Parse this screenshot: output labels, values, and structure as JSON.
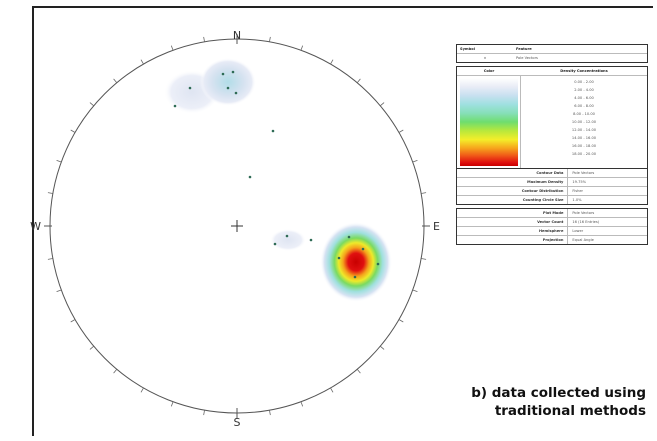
{
  "compass": {
    "north": "N",
    "south": "S",
    "east": "E",
    "west": "W"
  },
  "legend": {
    "symbol_header": {
      "col1": "Symbol",
      "col2": "Feature"
    },
    "symbol_row": {
      "marker": "×",
      "label": "Pole Vectors"
    },
    "density_header": {
      "col1": "Color",
      "col2": "Density Concentrations"
    },
    "density_ranges": [
      "0.00  -  2.00",
      "2.00  -  4.00",
      "4.00  -  6.00",
      "6.00  -  8.00",
      "8.00  -  10.00",
      "10.00  -  12.00",
      "12.00  -  14.00",
      "14.00  -  16.00",
      "16.00  -  18.00",
      "18.00  -  20.00"
    ],
    "contour_info": [
      {
        "key": "Contour Data",
        "value": "Pole Vectors"
      },
      {
        "key": "Maximum Density",
        "value": "19.75%"
      },
      {
        "key": "Contour Distribution",
        "value": "Fisher"
      },
      {
        "key": "Counting Circle Size",
        "value": "1.0%"
      }
    ],
    "plot_info": [
      {
        "key": "Plot Mode",
        "value": "Pole Vectors"
      },
      {
        "key": "Vector Count",
        "value": "16 (16 Entries)"
      },
      {
        "key": "Hemisphere",
        "value": "Lower"
      },
      {
        "key": "Projection",
        "value": "Equal Angle"
      }
    ]
  },
  "colors": {
    "pole_marker": "#2e6b55",
    "outline": "#555555",
    "density_high": "#e01010",
    "density_low": "#e8ecf6"
  },
  "caption": {
    "line1": "b) data collected using",
    "line2": "traditional methods"
  }
}
